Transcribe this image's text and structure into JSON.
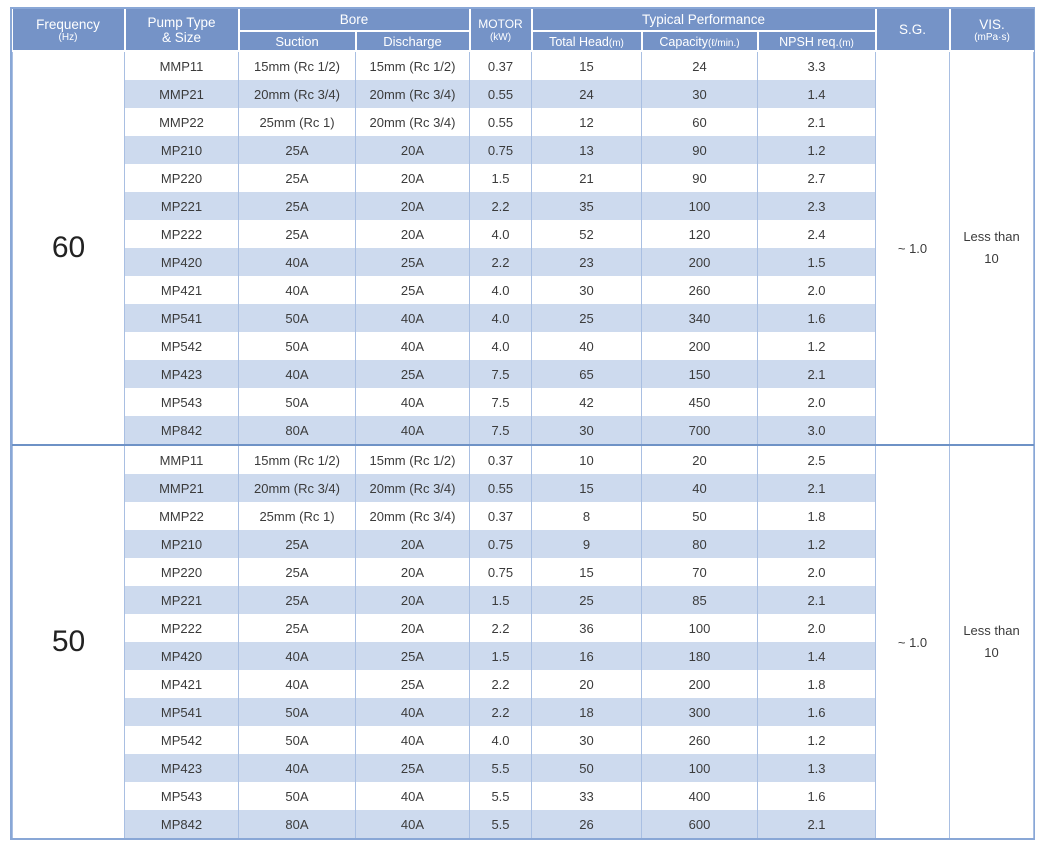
{
  "header": {
    "frequency": {
      "main": "Frequency",
      "sub": "(Hz)"
    },
    "pump_type": {
      "line1": "Pump Type",
      "line2": "& Size"
    },
    "bore": {
      "group": "Bore",
      "suction": "Suction",
      "discharge": "Discharge"
    },
    "motor": {
      "main": "MOTOR",
      "sub": "(kW)"
    },
    "performance": {
      "group": "Typical Performance",
      "total_head": {
        "main": "Total Head",
        "sub": "(m)"
      },
      "capacity": {
        "main": "Capacity",
        "sub": "(ℓ/min.)"
      },
      "npsh": {
        "main": "NPSH req.",
        "sub": "(m)"
      }
    },
    "sg": {
      "main": "S.G."
    },
    "vis": {
      "main": "VIS.",
      "sub": "(mPa·s)"
    }
  },
  "sections": [
    {
      "frequency": "60",
      "sg": "~ 1.0",
      "vis": [
        "Less than",
        "10"
      ],
      "rows": [
        [
          "MMP11",
          "15mm (Rc 1/2)",
          "15mm (Rc 1/2)",
          "0.37",
          "15",
          "24",
          "3.3"
        ],
        [
          "MMP21",
          "20mm (Rc 3/4)",
          "20mm (Rc 3/4)",
          "0.55",
          "24",
          "30",
          "1.4"
        ],
        [
          "MMP22",
          "25mm (Rc 1)",
          "20mm (Rc 3/4)",
          "0.55",
          "12",
          "60",
          "2.1"
        ],
        [
          "MP210",
          "25A",
          "20A",
          "0.75",
          "13",
          "90",
          "1.2"
        ],
        [
          "MP220",
          "25A",
          "20A",
          "1.5",
          "21",
          "90",
          "2.7"
        ],
        [
          "MP221",
          "25A",
          "20A",
          "2.2",
          "35",
          "100",
          "2.3"
        ],
        [
          "MP222",
          "25A",
          "20A",
          "4.0",
          "52",
          "120",
          "2.4"
        ],
        [
          "MP420",
          "40A",
          "25A",
          "2.2",
          "23",
          "200",
          "1.5"
        ],
        [
          "MP421",
          "40A",
          "25A",
          "4.0",
          "30",
          "260",
          "2.0"
        ],
        [
          "MP541",
          "50A",
          "40A",
          "4.0",
          "25",
          "340",
          "1.6"
        ],
        [
          "MP542",
          "50A",
          "40A",
          "4.0",
          "40",
          "200",
          "1.2"
        ],
        [
          "MP423",
          "40A",
          "25A",
          "7.5",
          "65",
          "150",
          "2.1"
        ],
        [
          "MP543",
          "50A",
          "40A",
          "7.5",
          "42",
          "450",
          "2.0"
        ],
        [
          "MP842",
          "80A",
          "40A",
          "7.5",
          "30",
          "700",
          "3.0"
        ]
      ]
    },
    {
      "frequency": "50",
      "sg": "~ 1.0",
      "vis": [
        "Less than",
        "10"
      ],
      "rows": [
        [
          "MMP11",
          "15mm (Rc 1/2)",
          "15mm (Rc 1/2)",
          "0.37",
          "10",
          "20",
          "2.5"
        ],
        [
          "MMP21",
          "20mm (Rc 3/4)",
          "20mm (Rc 3/4)",
          "0.55",
          "15",
          "40",
          "2.1"
        ],
        [
          "MMP22",
          "25mm (Rc 1)",
          "20mm (Rc 3/4)",
          "0.37",
          "8",
          "50",
          "1.8"
        ],
        [
          "MP210",
          "25A",
          "20A",
          "0.75",
          "9",
          "80",
          "1.2"
        ],
        [
          "MP220",
          "25A",
          "20A",
          "0.75",
          "15",
          "70",
          "2.0"
        ],
        [
          "MP221",
          "25A",
          "20A",
          "1.5",
          "25",
          "85",
          "2.1"
        ],
        [
          "MP222",
          "25A",
          "20A",
          "2.2",
          "36",
          "100",
          "2.0"
        ],
        [
          "MP420",
          "40A",
          "25A",
          "1.5",
          "16",
          "180",
          "1.4"
        ],
        [
          "MP421",
          "40A",
          "25A",
          "2.2",
          "20",
          "200",
          "1.8"
        ],
        [
          "MP541",
          "50A",
          "40A",
          "2.2",
          "18",
          "300",
          "1.6"
        ],
        [
          "MP542",
          "50A",
          "40A",
          "4.0",
          "30",
          "260",
          "1.2"
        ],
        [
          "MP423",
          "40A",
          "25A",
          "5.5",
          "50",
          "100",
          "1.3"
        ],
        [
          "MP543",
          "50A",
          "40A",
          "5.5",
          "33",
          "400",
          "1.6"
        ],
        [
          "MP842",
          "80A",
          "40A",
          "5.5",
          "26",
          "600",
          "2.1"
        ]
      ]
    }
  ],
  "colors": {
    "header_bg": "#7593C7",
    "stripe_bg": "#CDDAEE",
    "grid_line": "#A9BFE2",
    "outer_border": "#89A7D6",
    "section_divider": "#6E92C6"
  }
}
